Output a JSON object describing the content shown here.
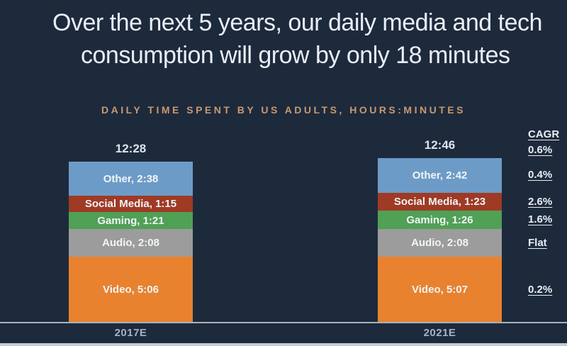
{
  "slide": {
    "title_line1": "Over the next 5 years, our daily media and tech",
    "title_line2": "consumption will grow by only 18 minutes"
  },
  "chart_data": {
    "type": "bar",
    "variant": "stacked-column",
    "title": "DAILY TIME SPENT BY US ADULTS, HOURS:MINUTES",
    "unit": "hours:minutes per day",
    "categories": [
      "2017E",
      "2021E"
    ],
    "totals": [
      "12:28",
      "12:46"
    ],
    "total_minutes": [
      748,
      766
    ],
    "cagr_header": "CAGR",
    "total_cagr": "0.6%",
    "series": [
      {
        "name": "Video",
        "values": [
          "5:06",
          "5:07"
        ],
        "minutes": [
          306,
          307
        ],
        "labels": [
          "Video, 5:06",
          "Video, 5:07"
        ],
        "cagr": "0.2%",
        "color": "#e8822f"
      },
      {
        "name": "Audio",
        "values": [
          "2:08",
          "2:08"
        ],
        "minutes": [
          128,
          128
        ],
        "labels": [
          "Audio, 2:08",
          "Audio, 2:08"
        ],
        "cagr": "Flat",
        "color": "#9c9c9c"
      },
      {
        "name": "Gaming",
        "values": [
          "1:21",
          "1:26"
        ],
        "minutes": [
          81,
          86
        ],
        "labels": [
          "Gaming, 1:21",
          "Gaming, 1:26"
        ],
        "cagr": "1.6%",
        "color": "#50a055"
      },
      {
        "name": "Social Media",
        "values": [
          "1:15",
          "1:23"
        ],
        "minutes": [
          75,
          83
        ],
        "labels": [
          "Social Media, 1:15",
          "Social Media, 1:23"
        ],
        "cagr": "2.6%",
        "color": "#9f3a24"
      },
      {
        "name": "Other",
        "values": [
          "2:38",
          "2:42"
        ],
        "minutes": [
          158,
          162
        ],
        "labels": [
          "Other, 2:38",
          "Other, 2:42"
        ],
        "cagr": "0.4%",
        "color": "#6d9bc7"
      }
    ],
    "legend_position": "inline-on-segments",
    "grid": false
  },
  "colors": {
    "background": "#1d2a3c",
    "title_text": "#e9eef5",
    "subtitle_text": "#c9996f",
    "segment_label_text": "#f1f5f8",
    "total_label_text": "#dde4ec",
    "category_label_text": "#a2b4c5",
    "cagr_text": "#e9eef4",
    "axis_line": "#a6b2bd",
    "bottom_divider": "#c3ccd5"
  }
}
